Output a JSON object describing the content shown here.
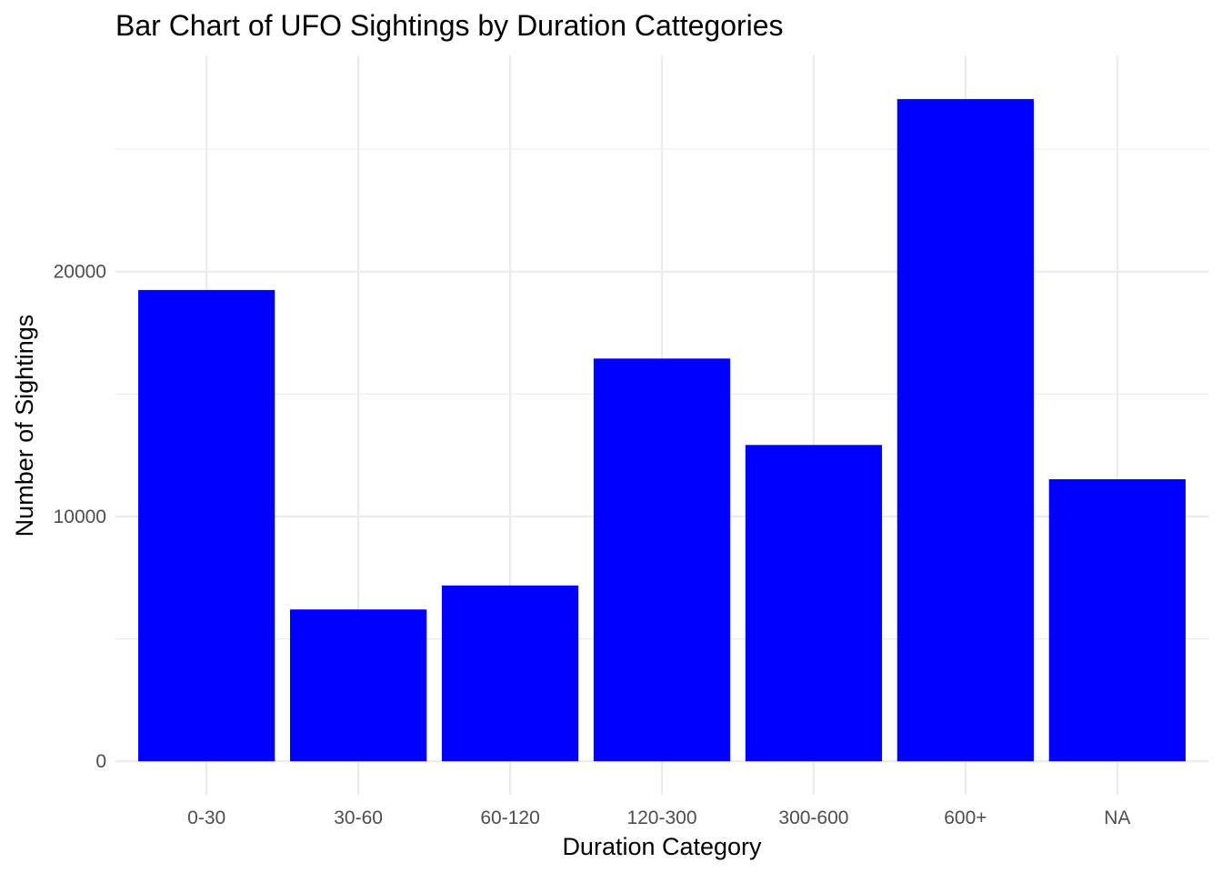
{
  "chart_data": {
    "type": "bar",
    "title": "Bar Chart of UFO Sightings by Duration Cattegories",
    "xlabel": "Duration Category",
    "ylabel": "Number of Sightings",
    "categories": [
      "0-30",
      "30-60",
      "60-120",
      "120-300",
      "300-600",
      "600+",
      "NA"
    ],
    "values": [
      19250,
      6200,
      7180,
      16450,
      12920,
      27050,
      11520
    ],
    "yticks": [
      0,
      10000,
      20000
    ],
    "yticklabels": [
      "0",
      "10000",
      "20000"
    ],
    "ylim": [
      -1370,
      28830
    ],
    "grid": true,
    "legend": "none",
    "bar_color": "#0000ff"
  }
}
